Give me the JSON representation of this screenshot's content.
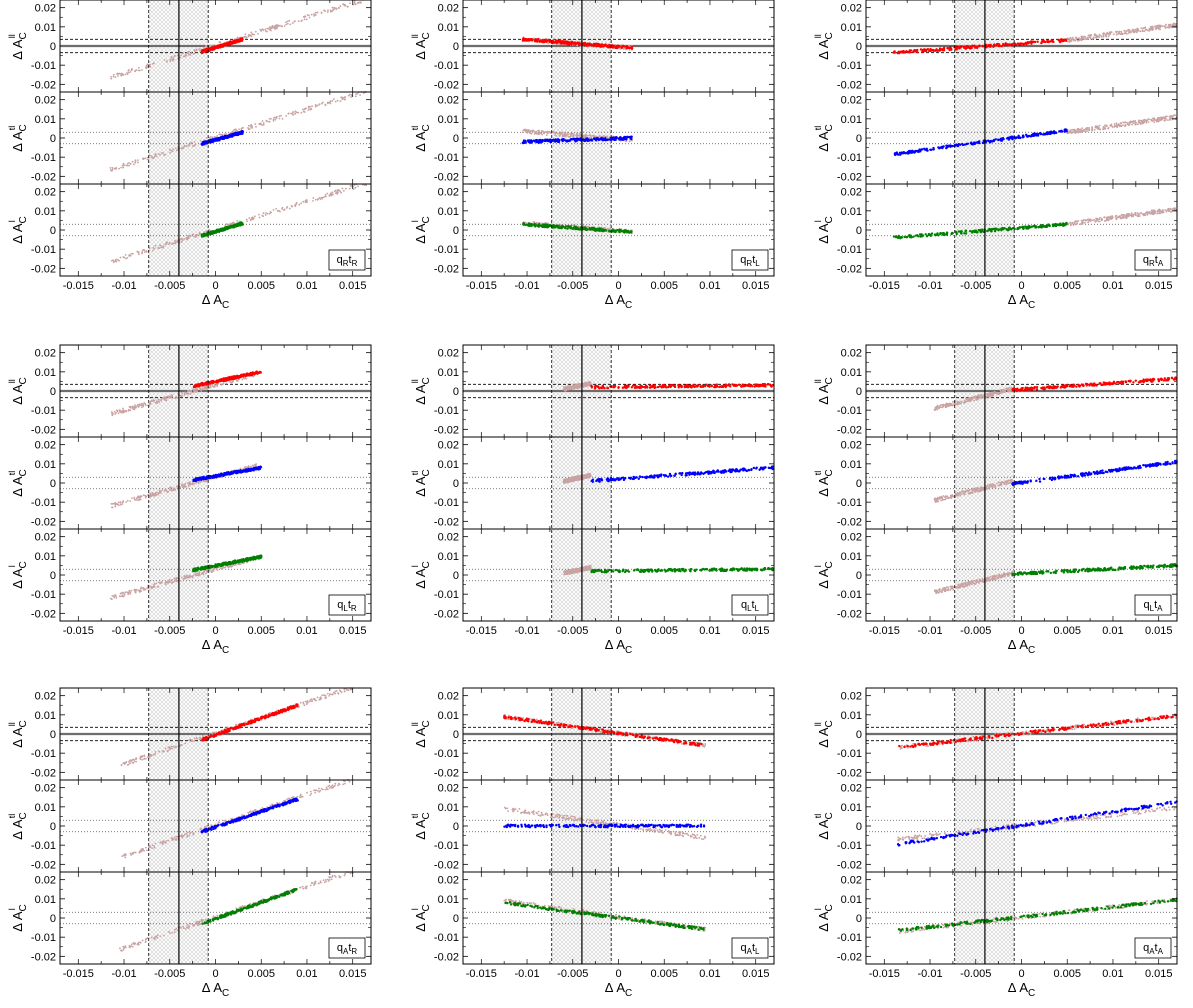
{
  "figure": {
    "colors": {
      "all": "#c9a3a3",
      "ll": "#ff0000",
      "tl": "#0000ff",
      "l": "#008000",
      "band_dashed": "#000000",
      "meas_fill": "#d9d9d9"
    },
    "xlabel": "Δ A",
    "xlabel_sub": "C",
    "row_labels": [
      {
        "main": "Δ A",
        "sub": "C",
        "sup": "ll"
      },
      {
        "main": "Δ A",
        "sub": "C",
        "sup": "tl"
      },
      {
        "main": "Δ A",
        "sub": "C",
        "sup": "l"
      }
    ],
    "xticks": [
      "-0.015",
      "-0.01",
      "-0.005",
      "0",
      "0.005",
      "0.01",
      "0.015"
    ],
    "yticks": [
      "0.02",
      "0.01",
      "0",
      "-0.01",
      "-0.02"
    ],
    "measured_dAC": -0.004,
    "dAC_band": [
      -0.0073,
      -0.0008
    ],
    "dACll_band": [
      -0.0035,
      0.0035
    ],
    "dACll_meas_band": [
      -0.0008,
      0.0008
    ],
    "ytl_dotted": [
      -0.003,
      0.003
    ],
    "xlim": [
      -0.017,
      0.017
    ],
    "ylim": [
      -0.024,
      0.024
    ]
  },
  "chart_data": [
    {
      "type": "scatter",
      "model": "qRtR",
      "label": "q",
      "qsub": "R",
      "tsub": "R",
      "series": [
        {
          "values": [
            [
              -0.0115,
              -0.0165
            ],
            [
              0.0165,
              0.0245
            ]
          ]
        },
        {
          "values": [
            [
              -0.0015,
              -0.003
            ],
            [
              0.003,
              0.0035
            ]
          ]
        },
        {
          "values": [
            [
              -0.0015,
              -0.003
            ],
            [
              0.003,
              0.003
            ]
          ]
        },
        {
          "values": [
            [
              -0.0015,
              -0.003
            ],
            [
              0.003,
              0.0035
            ]
          ]
        }
      ]
    },
    {
      "type": "scatter",
      "model": "qRtL",
      "label": "q",
      "qsub": "R",
      "tsub": "L",
      "series": [
        {
          "values": [
            [
              -0.0105,
              0.0035
            ],
            [
              0.0015,
              -0.001
            ]
          ]
        },
        {
          "values": [
            [
              -0.0105,
              0.0035
            ],
            [
              0.0015,
              -0.001
            ]
          ]
        },
        {
          "values": [
            [
              -0.0105,
              -0.002
            ],
            [
              0.0015,
              0.0
            ]
          ]
        },
        {
          "values": [
            [
              -0.0105,
              0.003
            ],
            [
              0.0015,
              -0.001
            ]
          ]
        }
      ]
    },
    {
      "type": "scatter",
      "model": "qRtA",
      "label": "q",
      "qsub": "R",
      "tsub": "A",
      "series": [
        {
          "values": [
            [
              0.005,
              0.003
            ],
            [
              0.017,
              0.011
            ]
          ]
        },
        {
          "values": [
            [
              -0.014,
              -0.0035
            ],
            [
              0.005,
              0.003
            ]
          ]
        },
        {
          "values": [
            [
              -0.014,
              -0.0085
            ],
            [
              0.005,
              0.004
            ]
          ]
        },
        {
          "values": [
            [
              -0.014,
              -0.004
            ],
            [
              0.005,
              0.003
            ]
          ]
        }
      ]
    },
    {
      "type": "scatter",
      "model": "qLtR",
      "label": "q",
      "qsub": "L",
      "tsub": "R",
      "series": [
        {
          "values": [
            [
              -0.0115,
              -0.012
            ],
            [
              0.0045,
              0.009
            ]
          ]
        },
        {
          "values": [
            [
              -0.0025,
              0.0025
            ],
            [
              0.005,
              0.01
            ]
          ]
        },
        {
          "values": [
            [
              -0.0025,
              0.0015
            ],
            [
              0.005,
              0.008
            ]
          ]
        },
        {
          "values": [
            [
              -0.0025,
              0.0025
            ],
            [
              0.005,
              0.0095
            ]
          ]
        }
      ]
    },
    {
      "type": "scatter",
      "model": "qLtL",
      "label": "q",
      "qsub": "L",
      "tsub": "L",
      "series": [
        {
          "values": [
            [
              -0.006,
              0.001
            ],
            [
              -0.003,
              0.004
            ]
          ]
        },
        {
          "values": [
            [
              -0.003,
              0.002
            ],
            [
              0.017,
              0.003
            ]
          ]
        },
        {
          "values": [
            [
              -0.003,
              0.001
            ],
            [
              0.017,
              0.008
            ]
          ]
        },
        {
          "values": [
            [
              -0.003,
              0.002
            ],
            [
              0.017,
              0.003
            ]
          ]
        }
      ]
    },
    {
      "type": "scatter",
      "model": "qLtA",
      "label": "q",
      "qsub": "L",
      "tsub": "A",
      "series": [
        {
          "values": [
            [
              -0.0095,
              -0.009
            ],
            [
              -0.001,
              0.001
            ]
          ]
        },
        {
          "values": [
            [
              -0.001,
              0.0005
            ],
            [
              0.017,
              0.0065
            ]
          ]
        },
        {
          "values": [
            [
              -0.001,
              -0.0005
            ],
            [
              0.017,
              0.011
            ]
          ]
        },
        {
          "values": [
            [
              -0.001,
              0.0005
            ],
            [
              0.017,
              0.005
            ]
          ]
        }
      ]
    },
    {
      "type": "scatter",
      "model": "qAtR",
      "label": "q",
      "qsub": "A",
      "tsub": "R",
      "series": [
        {
          "values": [
            [
              -0.0105,
              -0.0165
            ],
            [
              0.015,
              0.0245
            ]
          ]
        },
        {
          "values": [
            [
              -0.0015,
              -0.003
            ],
            [
              0.009,
              0.015
            ]
          ]
        },
        {
          "values": [
            [
              -0.0015,
              -0.003
            ],
            [
              0.009,
              0.014
            ]
          ]
        },
        {
          "values": [
            [
              -0.0015,
              -0.003
            ],
            [
              0.009,
              0.015
            ]
          ]
        }
      ]
    },
    {
      "type": "scatter",
      "model": "qAtL",
      "label": "q",
      "qsub": "A",
      "tsub": "L",
      "series": [
        {
          "values": [
            [
              -0.0125,
              0.009
            ],
            [
              0.0095,
              -0.006
            ]
          ]
        },
        {
          "values": [
            [
              -0.0125,
              0.009
            ],
            [
              0.0095,
              -0.006
            ]
          ]
        },
        {
          "values": [
            [
              -0.0125,
              0.0
            ],
            [
              0.0095,
              0.0
            ]
          ]
        },
        {
          "values": [
            [
              -0.0125,
              0.008
            ],
            [
              0.0095,
              -0.006
            ]
          ]
        }
      ]
    },
    {
      "type": "scatter",
      "model": "qAtA",
      "label": "q",
      "qsub": "A",
      "tsub": "A",
      "series": [
        {
          "values": [
            [
              -0.0135,
              -0.007
            ],
            [
              0.017,
              0.0095
            ]
          ]
        },
        {
          "values": [
            [
              -0.0135,
              -0.007
            ],
            [
              0.017,
              0.0095
            ]
          ]
        },
        {
          "values": [
            [
              -0.0135,
              -0.0095
            ],
            [
              0.017,
              0.0125
            ]
          ]
        },
        {
          "values": [
            [
              -0.0135,
              -0.0065
            ],
            [
              0.017,
              0.0095
            ]
          ]
        }
      ]
    }
  ]
}
